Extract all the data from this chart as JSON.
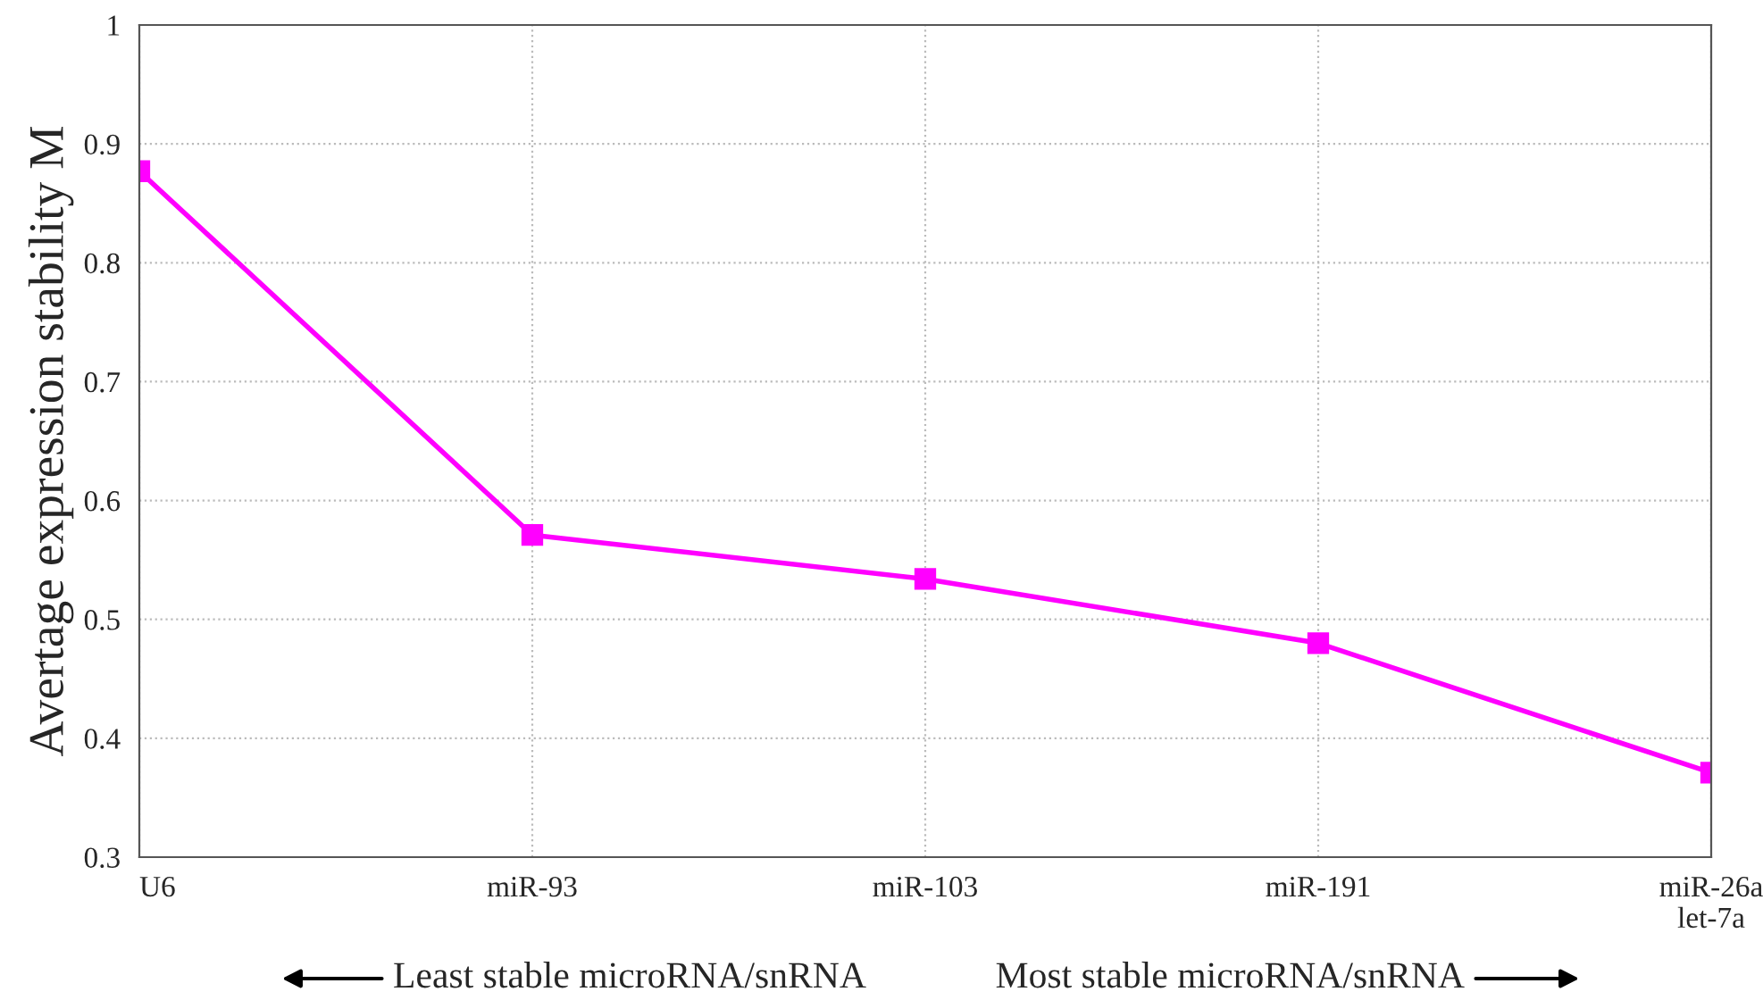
{
  "chart_data": {
    "type": "line",
    "ylabel": "Avertage expression stability M",
    "categories": [
      "U6",
      "miR-93",
      "miR-103",
      "miR-191",
      "miR-26a\nlet-7a"
    ],
    "series": [
      {
        "color": "#ff00ff",
        "values": [
          0.877,
          0.571,
          0.534,
          0.48,
          0.371
        ]
      }
    ],
    "ylim": [
      0.3,
      1
    ],
    "yticks": [
      0.3,
      0.4,
      0.5,
      0.6,
      0.7,
      0.8,
      0.9,
      1
    ],
    "grid": true,
    "marker": "square",
    "line_style": "solid",
    "legend": false,
    "annotations": [
      "Least stable microRNA/snRNA",
      "Most stable microRNA/snRNA"
    ]
  }
}
